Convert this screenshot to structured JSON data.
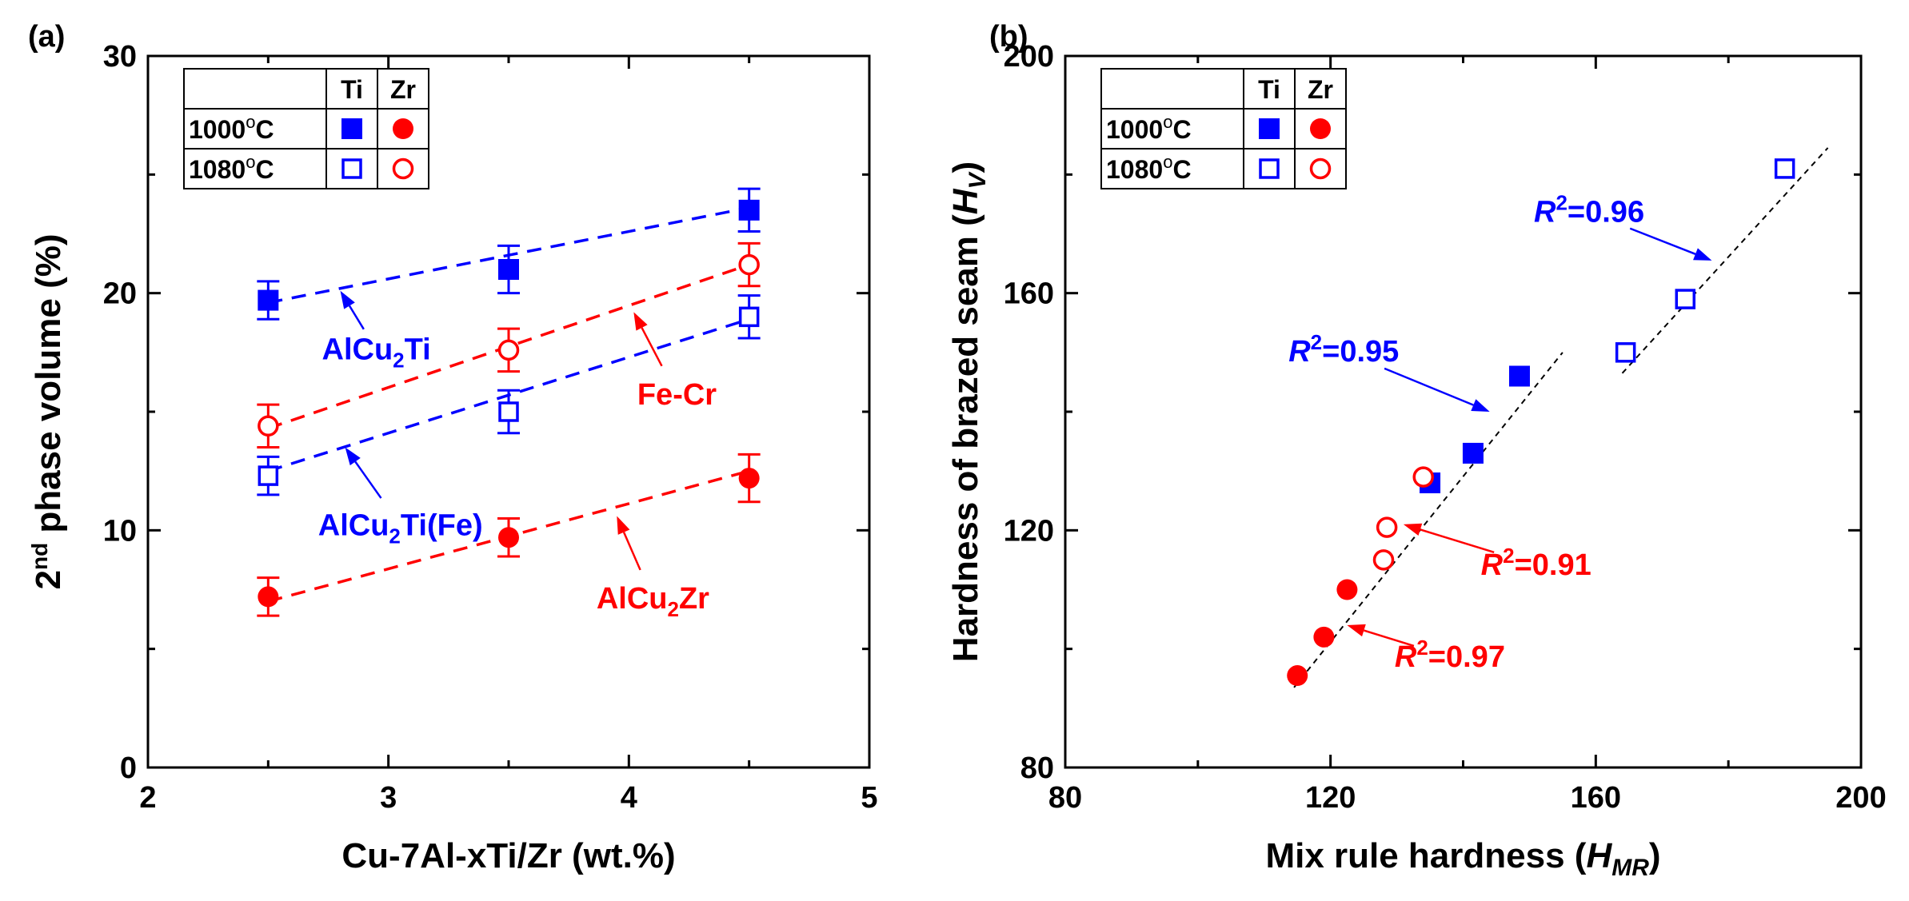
{
  "chart_data": [
    {
      "panel_label": "(a)",
      "type": "scatter",
      "xlabel": "Cu-7Al-xTi/Zr (wt.%)",
      "ylabel_parts": [
        "2",
        "nd",
        " phase volume (%)"
      ],
      "xlim": [
        2,
        5
      ],
      "ylim": [
        0,
        30
      ],
      "xticks": [
        2,
        3,
        4,
        5
      ],
      "yticks": [
        0,
        10,
        20,
        30
      ],
      "grid": false,
      "legend": {
        "placement": "top-left",
        "columns": [
          "Ti",
          "Zr"
        ],
        "rows": [
          {
            "label": "1000",
            "sup": "o",
            "unit": "C"
          },
          {
            "label": "1080",
            "sup": "o",
            "unit": "C"
          }
        ]
      },
      "series": [
        {
          "marker": "filled-square",
          "color": "#0000ff",
          "x": [
            2.5,
            3.5,
            4.5
          ],
          "y": [
            19.7,
            21.0,
            23.5
          ],
          "yerr": [
            0.8,
            1.0,
            0.9
          ]
        },
        {
          "marker": "open-square",
          "color": "#0000ff",
          "x": [
            2.5,
            3.5,
            4.5
          ],
          "y": [
            12.3,
            15.0,
            19.0
          ],
          "yerr": [
            0.8,
            0.9,
            0.9
          ]
        },
        {
          "marker": "open-circle",
          "color": "#ff0000",
          "x": [
            2.5,
            3.5,
            4.5
          ],
          "y": [
            14.4,
            17.6,
            21.2
          ],
          "yerr": [
            0.9,
            0.9,
            0.9
          ]
        },
        {
          "marker": "filled-circle",
          "color": "#ff0000",
          "x": [
            2.5,
            3.5,
            4.5
          ],
          "y": [
            7.2,
            9.7,
            12.2
          ],
          "yerr": [
            0.8,
            0.8,
            1.0
          ]
        }
      ],
      "fit_lines": [
        {
          "color": "#0000ff",
          "x": [
            2.5,
            4.5
          ],
          "y": [
            19.6,
            23.6
          ]
        },
        {
          "color": "#0000ff",
          "x": [
            2.5,
            4.5
          ],
          "y": [
            12.5,
            18.9
          ]
        },
        {
          "color": "#ff0000",
          "x": [
            2.5,
            4.5
          ],
          "y": [
            14.3,
            21.2
          ]
        },
        {
          "color": "#ff0000",
          "x": [
            2.5,
            4.5
          ],
          "y": [
            7.0,
            12.5
          ]
        }
      ],
      "annotations": [
        {
          "text": "AlCu",
          "sub": "2",
          "rest": "Ti",
          "color": "#0000ff",
          "at": [
            2.95,
            17.2
          ],
          "arrow_to": [
            2.8,
            20.1
          ]
        },
        {
          "text": "Fe-Cr",
          "sub": "",
          "rest": "",
          "color": "#ff0000",
          "at": [
            4.2,
            15.3
          ],
          "arrow_to": [
            4.02,
            19.2
          ]
        },
        {
          "text": "AlCu",
          "sub": "2",
          "rest": "Ti(Fe)",
          "color": "#0000ff",
          "at": [
            3.05,
            9.8
          ],
          "arrow_to": [
            2.82,
            13.5
          ]
        },
        {
          "text": "AlCu",
          "sub": "2",
          "rest": "Zr",
          "color": "#ff0000",
          "at": [
            4.1,
            6.7
          ],
          "arrow_to": [
            3.95,
            10.6
          ]
        }
      ]
    },
    {
      "panel_label": "(b)",
      "type": "scatter",
      "xlabel": "Mix rule hardness (",
      "xlabel_var": "H",
      "xlabel_sub": "MR",
      "xlabel_end": ")",
      "ylabel": "Hardness of brazed seam (",
      "ylabel_var": "H",
      "ylabel_sub": "V",
      "ylabel_end": ")",
      "xlim": [
        80,
        200
      ],
      "ylim": [
        80,
        200
      ],
      "xticks": [
        80,
        120,
        160,
        200
      ],
      "yticks": [
        80,
        120,
        160,
        200
      ],
      "grid": false,
      "legend": {
        "placement": "top-left",
        "columns": [
          "Ti",
          "Zr"
        ],
        "rows": [
          {
            "label": "1000",
            "sup": "o",
            "unit": "C"
          },
          {
            "label": "1080",
            "sup": "o",
            "unit": "C"
          }
        ]
      },
      "series": [
        {
          "marker": "filled-square",
          "color": "#0000ff",
          "x": [
            135,
            141.5,
            148.5
          ],
          "y": [
            128,
            133,
            146
          ]
        },
        {
          "marker": "open-square",
          "color": "#0000ff",
          "x": [
            164.5,
            173.5,
            188.5
          ],
          "y": [
            150,
            159,
            181
          ]
        },
        {
          "marker": "filled-circle",
          "color": "#ff0000",
          "x": [
            115,
            119,
            122.5
          ],
          "y": [
            95.5,
            102,
            110
          ]
        },
        {
          "marker": "open-circle",
          "color": "#ff0000",
          "x": [
            128,
            128.5,
            134
          ],
          "y": [
            115,
            120.5,
            129
          ]
        }
      ],
      "fit_lines": [
        {
          "color": "#000000",
          "x": [
            114.5,
            155
          ],
          "y": [
            93.5,
            150
          ]
        },
        {
          "color": "#000000",
          "x": [
            164,
            195
          ],
          "y": [
            146.5,
            184.5
          ]
        }
      ],
      "annotations": [
        {
          "pre": "R",
          "sup": "2",
          "text": "=0.96",
          "color": "#0000ff",
          "at": [
            159,
            172
          ],
          "arrow_to": [
            177.5,
            165.5
          ]
        },
        {
          "pre": "R",
          "sup": "2",
          "text": "=0.95",
          "color": "#0000ff",
          "at": [
            122,
            148.5
          ],
          "arrow_to": [
            144,
            140
          ]
        },
        {
          "pre": "R",
          "sup": "2",
          "text": "=0.91",
          "color": "#ff0000",
          "at": [
            151,
            112.5
          ],
          "arrow_to": [
            131,
            121
          ]
        },
        {
          "pre": "R",
          "sup": "2",
          "text": "=0.97",
          "color": "#ff0000",
          "at": [
            138,
            97
          ],
          "arrow_to": [
            122.5,
            104
          ]
        }
      ]
    }
  ]
}
